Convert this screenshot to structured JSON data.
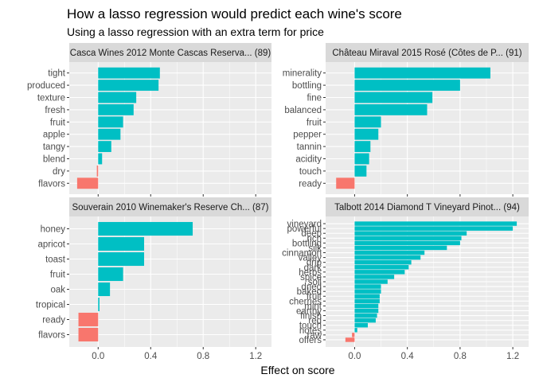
{
  "title": "How a lasso regression would predict each wine's score",
  "subtitle": "Using a lasso regression with an extra term for price",
  "xlabel": "Effect on score",
  "colors": {
    "positive": "#00BFC4",
    "negative": "#F8766D",
    "panel_bg": "#EBEBEB",
    "strip_bg": "#D9D9D9",
    "grid": "#FFFFFF"
  },
  "chart_data": [
    {
      "type": "bar",
      "orientation": "horizontal",
      "facet_title": "Casca Wines 2012 Monte Cascas Reserva... (89)",
      "categories": [
        "tight",
        "produced",
        "texture",
        "fresh",
        "fruit",
        "apple",
        "tangy",
        "blend",
        "dry",
        "flavors"
      ],
      "values": [
        0.47,
        0.46,
        0.29,
        0.27,
        0.19,
        0.17,
        0.1,
        0.03,
        -0.01,
        -0.16
      ],
      "xlim": [
        -0.22,
        1.32
      ],
      "xticks": [
        0.0,
        0.4,
        0.8,
        1.2
      ],
      "xtick_labels": [
        "0.0",
        "0.4",
        "0.8",
        "1.2"
      ]
    },
    {
      "type": "bar",
      "orientation": "horizontal",
      "facet_title": "Château Miraval 2015 Rosé (Côtes de P... (91)",
      "categories": [
        "minerality",
        "bottling",
        "fine",
        "balanced",
        "fruit",
        "pepper",
        "tannin",
        "acidity",
        "touch",
        "ready"
      ],
      "values": [
        1.03,
        0.8,
        0.59,
        0.55,
        0.2,
        0.18,
        0.12,
        0.11,
        0.09,
        -0.14
      ],
      "xlim": [
        -0.22,
        1.32
      ],
      "xticks": [
        0.0,
        0.4,
        0.8,
        1.2
      ],
      "xtick_labels": [
        "0.0",
        "0.4",
        "0.8",
        "1.2"
      ]
    },
    {
      "type": "bar",
      "orientation": "horizontal",
      "facet_title": "Souverain 2010 Winemaker's Reserve Ch... (87)",
      "categories": [
        "honey",
        "apricot",
        "toast",
        "fruit",
        "oak",
        "tropical",
        "ready",
        "flavors"
      ],
      "values": [
        0.72,
        0.35,
        0.35,
        0.19,
        0.09,
        0.01,
        -0.15,
        -0.15
      ],
      "xlim": [
        -0.22,
        1.32
      ],
      "xticks": [
        0.0,
        0.4,
        0.8,
        1.2
      ],
      "xtick_labels": [
        "0.0",
        "0.4",
        "0.8",
        "1.2"
      ]
    },
    {
      "type": "bar",
      "orientation": "horizontal",
      "facet_title": "Talbott 2014 Diamond T Vineyard Pinot... (94)",
      "categories": [
        "vineyard",
        "powerful",
        "deep",
        "rich",
        "bottling",
        "silk",
        "cinnamon",
        "valley",
        "drip",
        "dark",
        "herbs",
        "spice",
        "soil",
        "dried",
        "baked",
        "fruit",
        "cherries",
        "mint",
        "earthy",
        "finish",
        "red",
        "touch",
        "notes",
        "raw",
        "offers"
      ],
      "values": [
        1.23,
        1.2,
        0.85,
        0.81,
        0.8,
        0.7,
        0.53,
        0.5,
        0.43,
        0.41,
        0.38,
        0.3,
        0.25,
        0.2,
        0.2,
        0.19,
        0.19,
        0.18,
        0.18,
        0.17,
        0.16,
        0.1,
        0.02,
        -0.02,
        -0.07
      ],
      "xlim": [
        -0.22,
        1.32
      ],
      "xticks": [
        0.0,
        0.4,
        0.8,
        1.2
      ],
      "xtick_labels": [
        "0.0",
        "0.4",
        "0.8",
        "1.2"
      ]
    }
  ]
}
